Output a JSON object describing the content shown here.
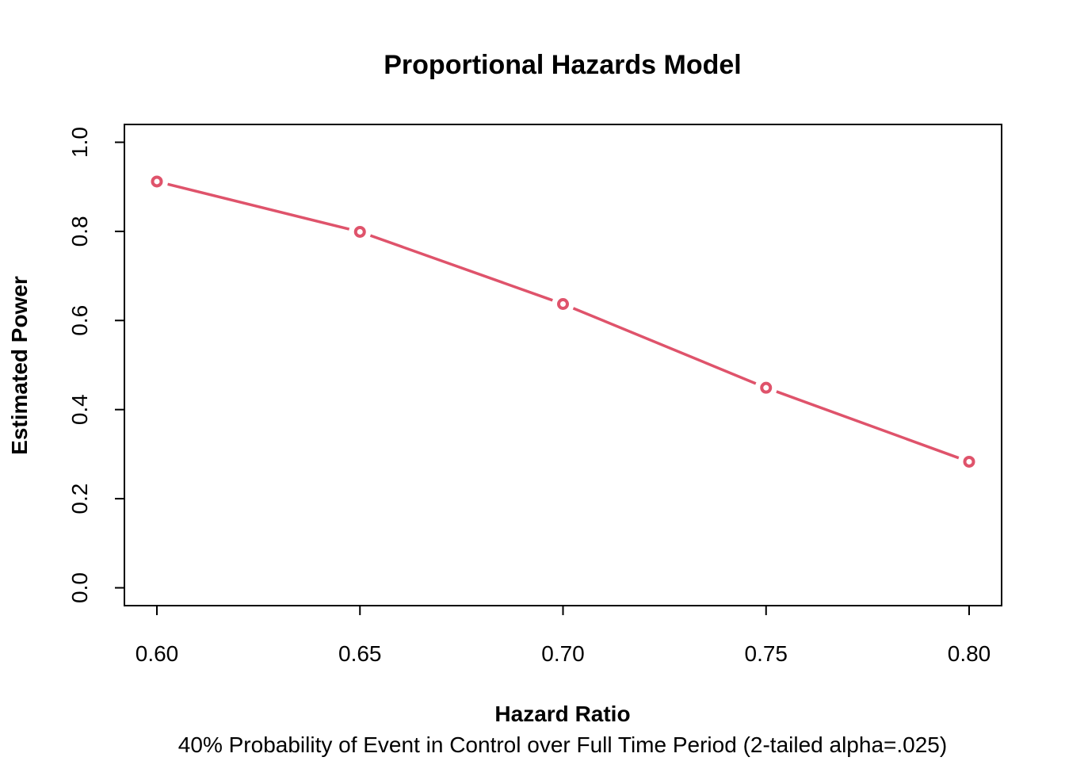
{
  "chart_data": {
    "type": "line",
    "title": "Proportional Hazards Model",
    "xlabel": "Hazard Ratio",
    "ylabel": "Estimated Power",
    "subtitle": "40% Probability of Event in Control over Full Time Period (2-tailed alpha=.025)",
    "x": [
      0.6,
      0.65,
      0.7,
      0.75,
      0.8
    ],
    "x_tick_labels": [
      "0.60",
      "0.65",
      "0.70",
      "0.75",
      "0.80"
    ],
    "y_ticks": [
      0.0,
      0.2,
      0.4,
      0.6,
      0.8,
      1.0
    ],
    "y_tick_labels": [
      "0.0",
      "0.2",
      "0.4",
      "0.6",
      "0.8",
      "1.0"
    ],
    "xlim": [
      0.592,
      0.808
    ],
    "ylim": [
      -0.04,
      1.04
    ],
    "grid": false,
    "series": [
      {
        "values": [
          0.912,
          0.799,
          0.637,
          0.449,
          0.283
        ],
        "color": "#DF536B",
        "style": "line-with-open-circles"
      }
    ]
  }
}
